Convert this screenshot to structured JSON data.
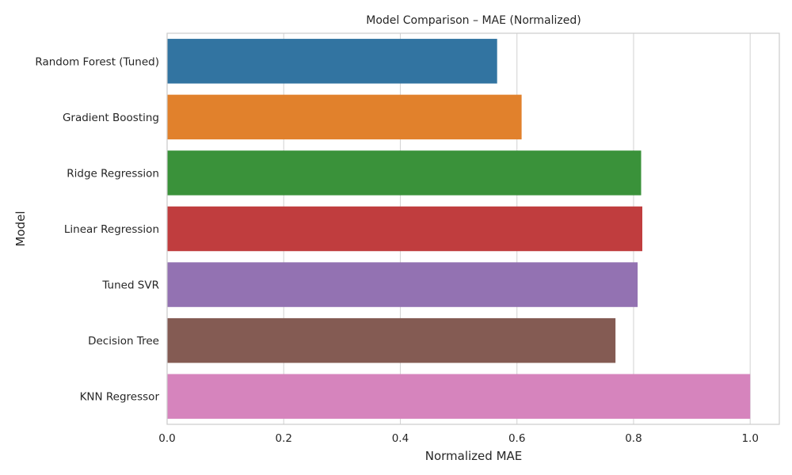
{
  "chart_data": {
    "type": "bar",
    "orientation": "horizontal",
    "title": "Model Comparison – MAE (Normalized)",
    "xlabel": "Normalized MAE",
    "ylabel": "Model",
    "xlim": [
      0,
      1.05
    ],
    "xticks": [
      0.0,
      0.2,
      0.4,
      0.6,
      0.8,
      1.0
    ],
    "xtick_labels": [
      "0.0",
      "0.2",
      "0.4",
      "0.6",
      "0.8",
      "1.0"
    ],
    "grid": "vertical",
    "categories": [
      "Random Forest (Tuned)",
      "Gradient Boosting",
      "Ridge Regression",
      "Linear Regression",
      "Tuned SVR",
      "Decision Tree",
      "KNN Regressor"
    ],
    "values": [
      0.566,
      0.608,
      0.813,
      0.815,
      0.807,
      0.769,
      1.0
    ],
    "colors": [
      "#3274a1",
      "#e1812c",
      "#3a923a",
      "#c03d3e",
      "#9372b2",
      "#845b53",
      "#d684bd"
    ]
  }
}
